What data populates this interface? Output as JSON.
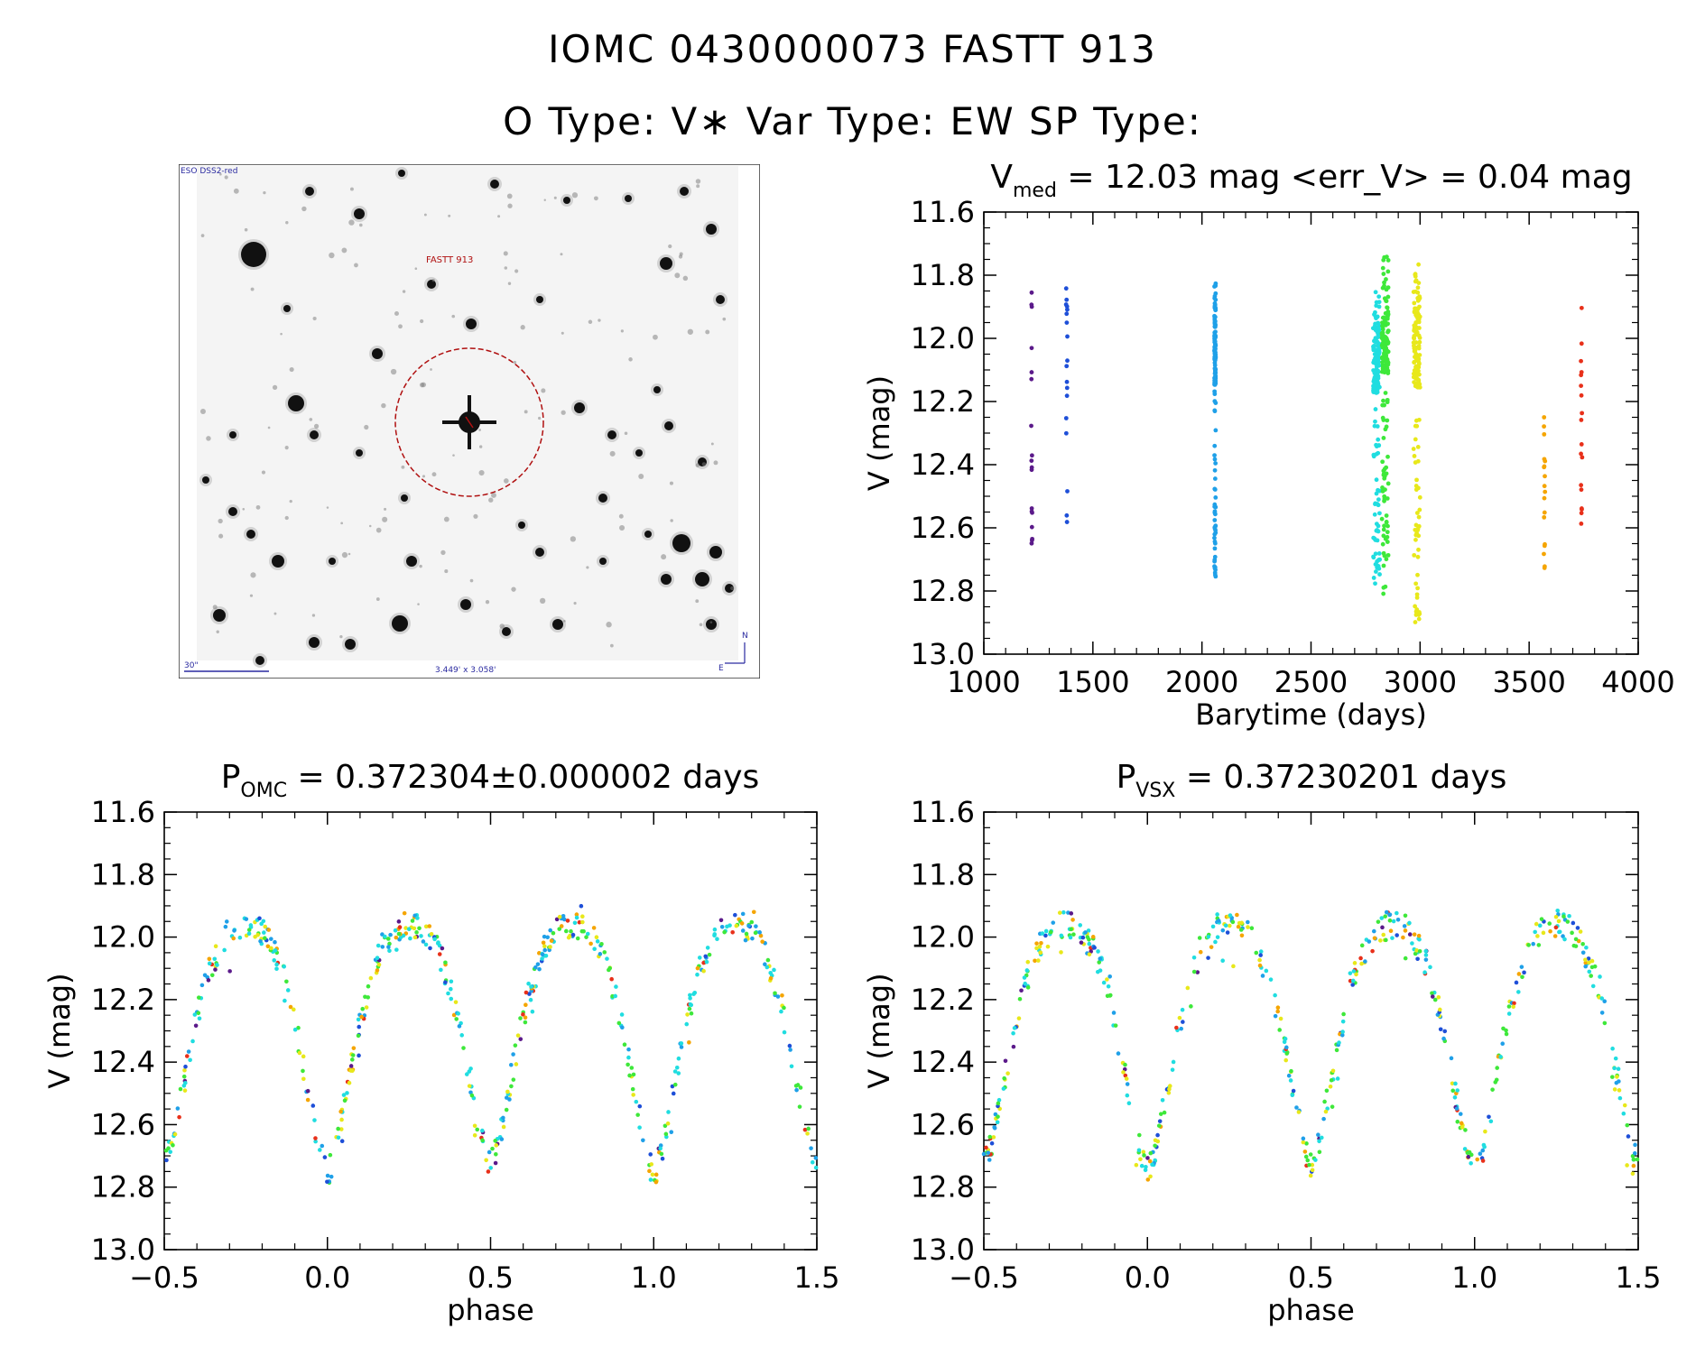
{
  "header": {
    "line1": "IOMC 0430000073    FASTT  913",
    "line2": "O Type: V∗  Var Type: EW  SP Type:"
  },
  "sky_image": {
    "survey": "ESO DSS2-red",
    "target_label": "FASTT 913",
    "scale_label": "30\"",
    "fov_label": "3.449' x 3.058'",
    "north": "N",
    "east": "E",
    "star_color": "#111111",
    "circle_color": "#b01010"
  },
  "colors": {
    "purple": "#5b1a8a",
    "blue": "#1e4fd8",
    "skyblue": "#1fa0e8",
    "cyan": "#20dde0",
    "green": "#3ee83a",
    "yellow": "#e8e81a",
    "orange": "#f5a500",
    "red": "#e8301a"
  },
  "chart_data": [
    {
      "type": "scatter",
      "id": "lightcurve",
      "title": "V",
      "title_sub": "med",
      "title_rest": " = 12.03 mag <err_V> = 0.04 mag",
      "xlabel": "Barytime (days)",
      "ylabel": "V (mag)",
      "xlim": [
        1000,
        4000
      ],
      "ylim": [
        13.0,
        11.6
      ],
      "y_inverted": true,
      "xticks": [
        1000,
        1500,
        2000,
        2500,
        3000,
        3500,
        4000
      ],
      "yticks": [
        11.6,
        11.8,
        12.0,
        12.2,
        12.4,
        12.6,
        12.8,
        13.0
      ],
      "xtick_labels": [
        "1000",
        "1500",
        "2000",
        "2500",
        "3000",
        "3500",
        "4000"
      ],
      "ytick_labels": [
        "11.6",
        "11.8",
        "12.0",
        "12.2",
        "12.4",
        "12.6",
        "12.8",
        "13.0"
      ],
      "series": [
        {
          "name": "group1",
          "color": "purple",
          "x": 1220,
          "ymin": 11.83,
          "ymax": 12.67
        },
        {
          "name": "group2",
          "color": "blue",
          "x": 1380,
          "ymin": 11.84,
          "ymax": 12.6
        },
        {
          "name": "group3",
          "color": "skyblue",
          "x": 2060,
          "ymin": 11.81,
          "ymax": 12.78
        },
        {
          "name": "group4",
          "color": "cyan",
          "x": 2800,
          "ymin": 11.85,
          "ymax": 12.78
        },
        {
          "name": "group5",
          "color": "green",
          "x": 2840,
          "ymin": 11.73,
          "ymax": 12.82
        },
        {
          "name": "group6",
          "color": "yellow",
          "x": 2985,
          "ymin": 11.75,
          "ymax": 12.91
        },
        {
          "name": "group7",
          "color": "orange",
          "x": 3570,
          "ymin": 12.25,
          "ymax": 12.73
        },
        {
          "name": "group8",
          "color": "red",
          "x": 3740,
          "ymin": 11.86,
          "ymax": 12.62
        }
      ]
    },
    {
      "type": "scatter",
      "id": "phase-omc",
      "title": "P",
      "title_sub": "OMC",
      "title_rest": " = 0.372304±0.000002 days",
      "xlabel": "phase",
      "ylabel": "V (mag)",
      "xlim": [
        -0.5,
        1.5
      ],
      "ylim": [
        13.0,
        11.6
      ],
      "y_inverted": true,
      "xticks": [
        -0.5,
        0.0,
        0.5,
        1.0,
        1.5
      ],
      "yticks": [
        11.6,
        11.8,
        12.0,
        12.2,
        12.4,
        12.6,
        12.8,
        13.0
      ],
      "xtick_labels": [
        "−0.5",
        "0.0",
        "0.5",
        "1.0",
        "1.5"
      ],
      "ytick_labels": [
        "11.6",
        "11.8",
        "12.0",
        "12.2",
        "12.4",
        "12.6",
        "12.8",
        "13.0"
      ],
      "model": {
        "max_mag": 11.92,
        "min_primary": 12.75,
        "min_secondary": 12.72
      }
    },
    {
      "type": "scatter",
      "id": "phase-vsx",
      "title": "P",
      "title_sub": "VSX",
      "title_rest": " = 0.37230201 days",
      "xlabel": "phase",
      "ylabel": "V (mag)",
      "xlim": [
        -0.5,
        1.5
      ],
      "ylim": [
        13.0,
        11.6
      ],
      "y_inverted": true,
      "xticks": [
        -0.5,
        0.0,
        0.5,
        1.0,
        1.5
      ],
      "yticks": [
        11.6,
        11.8,
        12.0,
        12.2,
        12.4,
        12.6,
        12.8,
        13.0
      ],
      "xtick_labels": [
        "−0.5",
        "0.0",
        "0.5",
        "1.0",
        "1.5"
      ],
      "ytick_labels": [
        "11.6",
        "11.8",
        "12.0",
        "12.2",
        "12.4",
        "12.6",
        "12.8",
        "13.0"
      ],
      "model": {
        "max_mag": 11.92,
        "min_primary": 12.75,
        "min_secondary": 12.72
      }
    }
  ]
}
